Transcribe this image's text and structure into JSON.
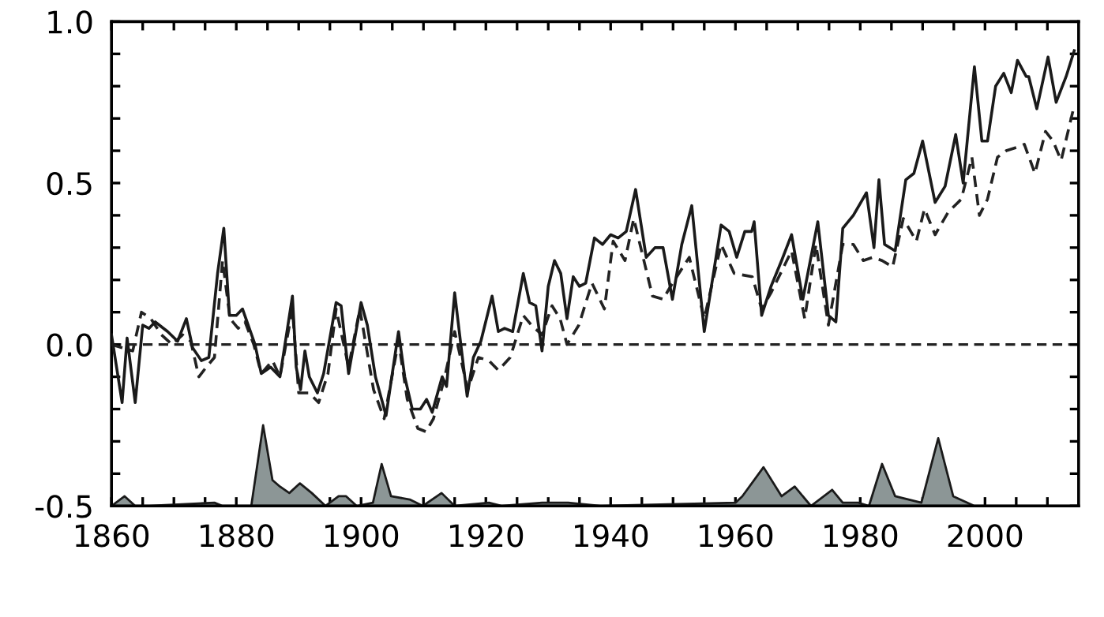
{
  "chart_data": {
    "type": "line",
    "xlim": [
      1860,
      2015
    ],
    "ylim": [
      -0.5,
      1.0
    ],
    "xticks": [
      1860,
      {
        "value": 1865,
        "label": null
      },
      {
        "value": 1870,
        "label": null
      },
      {
        "value": 1875,
        "label": null
      },
      1880,
      {
        "value": 1885,
        "label": null
      },
      {
        "value": 1890,
        "label": null
      },
      {
        "value": 1895,
        "label": null
      },
      1900,
      {
        "value": 1905,
        "label": null
      },
      {
        "value": 1910,
        "label": null
      },
      {
        "value": 1915,
        "label": null
      },
      1920,
      {
        "value": 1925,
        "label": null
      },
      {
        "value": 1930,
        "label": null
      },
      {
        "value": 1935,
        "label": null
      },
      1940,
      {
        "value": 1945,
        "label": null
      },
      {
        "value": 1950,
        "label": null
      },
      {
        "value": 1955,
        "label": null
      },
      1960,
      {
        "value": 1965,
        "label": null
      },
      {
        "value": 1970,
        "label": null
      },
      {
        "value": 1975,
        "label": null
      },
      1980,
      {
        "value": 1985,
        "label": null
      },
      {
        "value": 1990,
        "label": null
      },
      {
        "value": 1995,
        "label": null
      },
      2000,
      {
        "value": 2005,
        "label": null
      },
      {
        "value": 2010,
        "label": null
      }
    ],
    "yticks": [
      {
        "value": -0.5,
        "label": "-0.5"
      },
      {
        "value": -0.4,
        "label": null
      },
      {
        "value": -0.3,
        "label": null
      },
      {
        "value": -0.2,
        "label": null
      },
      {
        "value": -0.1,
        "label": null
      },
      {
        "value": 0.0,
        "label": "0.0"
      },
      {
        "value": 0.1,
        "label": null
      },
      {
        "value": 0.2,
        "label": null
      },
      {
        "value": 0.3,
        "label": null
      },
      {
        "value": 0.4,
        "label": null
      },
      {
        "value": 0.5,
        "label": "0.5"
      },
      {
        "value": 0.6,
        "label": null
      },
      {
        "value": 0.7,
        "label": null
      },
      {
        "value": 0.8,
        "label": null
      },
      {
        "value": 0.9,
        "label": null
      },
      {
        "value": 1.0,
        "label": "1.0"
      }
    ],
    "grid": false,
    "legend": false,
    "ref_lines": [
      {
        "axis": "y",
        "value": 0,
        "color": "#222222",
        "line_style": "dashed"
      }
    ],
    "series": [
      {
        "type": "area",
        "color": "#8c9696",
        "x": [
          1860,
          1862.1,
          1863.8,
          1866,
          1876.5,
          1877.8,
          1882.4,
          1884.3,
          1885.8,
          1887,
          1888.5,
          1890.2,
          1892.1,
          1894.3,
          1896.4,
          1897.6,
          1899.3,
          1901.9,
          1903.3,
          1904.8,
          1907.8,
          1909.9,
          1912.9,
          1915,
          1920.5,
          1922.6,
          1929,
          1933.2,
          1938.3,
          1960,
          1961.1,
          1964.5,
          1967.4,
          1969.5,
          1972.1,
          1975.5,
          1977.2,
          1979.7,
          1981.4,
          1983.5,
          1985.6,
          1989.8,
          1992.5,
          1994.9,
          1998.3,
          2015
        ],
        "values": [
          -0.5,
          -0.47,
          -0.5,
          -0.5,
          -0.49,
          -0.5,
          -0.5,
          -0.25,
          -0.42,
          -0.44,
          -0.46,
          -0.43,
          -0.46,
          -0.5,
          -0.47,
          -0.47,
          -0.5,
          -0.49,
          -0.37,
          -0.47,
          -0.48,
          -0.5,
          -0.46,
          -0.5,
          -0.49,
          -0.5,
          -0.49,
          -0.49,
          -0.5,
          -0.49,
          -0.47,
          -0.38,
          -0.47,
          -0.44,
          -0.5,
          -0.45,
          -0.49,
          -0.49,
          -0.5,
          -0.37,
          -0.47,
          -0.49,
          -0.29,
          -0.47,
          -0.5,
          -0.5
        ]
      },
      {
        "line_style": "dashed",
        "color": "#222222",
        "x": [
          1860,
          1861.7,
          1863.4,
          1864.8,
          1866.3,
          1868,
          1869.7,
          1871.4,
          1872.7,
          1874,
          1875.2,
          1876.5,
          1877.8,
          1879,
          1880.3,
          1881.4,
          1882.8,
          1884,
          1885.8,
          1887,
          1889,
          1890,
          1891.7,
          1893.2,
          1894.7,
          1896,
          1898,
          1899.8,
          1902,
          1903.7,
          1906,
          1907.4,
          1909.1,
          1910.4,
          1911.6,
          1913.3,
          1915,
          1917.1,
          1918.8,
          1920.5,
          1922,
          1923.9,
          1926,
          1927.3,
          1929,
          1930.6,
          1931.9,
          1933,
          1934.9,
          1937,
          1939,
          1940.4,
          1942.3,
          1943.7,
          1946.7,
          1948.4,
          1949.6,
          1952.6,
          1955,
          1957.7,
          1959.8,
          1962.7,
          1964.2,
          1965.7,
          1969,
          1971.1,
          1972.9,
          1974.9,
          1977.2,
          1978.9,
          1980.5,
          1982,
          1983.5,
          1985.2,
          1986.9,
          1989,
          1990.3,
          1992,
          1994.1,
          1996.2,
          1997.9,
          1999.1,
          2000.4,
          2002,
          2003.4,
          2005,
          2006.3,
          2008,
          2009.7,
          2010.9,
          2012.2,
          2014.3
        ],
        "values": [
          0,
          -0.01,
          -0.02,
          0.1,
          0.08,
          0.03,
          0,
          0.03,
          0.01,
          -0.1,
          -0.07,
          -0.04,
          0.26,
          0.08,
          0.05,
          0.07,
          0,
          -0.09,
          -0.05,
          -0.1,
          0.11,
          -0.15,
          -0.15,
          -0.18,
          -0.09,
          0.11,
          -0.07,
          0.11,
          -0.14,
          -0.23,
          0.01,
          -0.17,
          -0.26,
          -0.27,
          -0.23,
          -0.11,
          0.04,
          -0.14,
          -0.04,
          -0.05,
          -0.08,
          -0.04,
          0.09,
          0.06,
          0.03,
          0.12,
          0.08,
          0,
          0.06,
          0.19,
          0.11,
          0.32,
          0.26,
          0.39,
          0.15,
          0.14,
          0.18,
          0.27,
          0.08,
          0.31,
          0.22,
          0.21,
          0.11,
          0.16,
          0.29,
          0.08,
          0.31,
          0.06,
          0.31,
          0.31,
          0.26,
          0.27,
          0.26,
          0.24,
          0.39,
          0.32,
          0.42,
          0.34,
          0.41,
          0.45,
          0.58,
          0.4,
          0.45,
          0.58,
          0.6,
          0.61,
          0.62,
          0.53,
          0.66,
          0.63,
          0.57,
          0.74
        ]
      },
      {
        "line_style": "solid",
        "color": "#1a1a1a",
        "x": [
          1860,
          1861.7,
          1862.5,
          1863.8,
          1865,
          1866,
          1867,
          1869,
          1870.6,
          1872,
          1873,
          1874.4,
          1875.6,
          1877,
          1878,
          1878.9,
          1880,
          1881,
          1883,
          1884,
          1885.5,
          1887,
          1889,
          1889.6,
          1890.3,
          1891,
          1891.7,
          1893,
          1894,
          1896,
          1896.8,
          1898,
          1900,
          1901,
          1902.3,
          1904,
          1906,
          1907,
          1908.2,
          1909.5,
          1910.5,
          1911.4,
          1913,
          1913.7,
          1915,
          1915.8,
          1917,
          1918,
          1919.2,
          1921,
          1922,
          1923,
          1924.3,
          1926,
          1927,
          1928,
          1929,
          1930,
          1931,
          1932,
          1933,
          1934,
          1935,
          1936,
          1937.4,
          1938.7,
          1940,
          1941.2,
          1942.5,
          1944,
          1945.7,
          1947.1,
          1948.4,
          1949.9,
          1951.4,
          1953,
          1955,
          1957.7,
          1959,
          1960.2,
          1961.5,
          1962.6,
          1963,
          1964.2,
          1965.7,
          1967.4,
          1969,
          1970.8,
          1973.2,
          1974.9,
          1976.1,
          1977.2,
          1978.9,
          1981,
          1982.2,
          1983,
          1983.9,
          1985.6,
          1987.3,
          1988.6,
          1990,
          1992,
          1993.6,
          1995.3,
          1996.5,
          1998.3,
          1999.5,
          2000.4,
          2001.7,
          2003,
          2004.2,
          2005.2,
          2006.6,
          2007,
          2008.3,
          2010.1,
          2011.4,
          2013,
          2014.3
        ],
        "values": [
          0.03,
          -0.18,
          0.02,
          -0.18,
          0.06,
          0.05,
          0.07,
          0.04,
          0.01,
          0.08,
          -0.01,
          -0.05,
          -0.04,
          0.22,
          0.36,
          0.09,
          0.09,
          0.11,
          0,
          -0.09,
          -0.07,
          -0.1,
          0.15,
          -0.07,
          -0.14,
          -0.02,
          -0.1,
          -0.15,
          -0.09,
          0.13,
          0.12,
          -0.09,
          0.13,
          0.06,
          -0.1,
          -0.22,
          0.04,
          -0.1,
          -0.2,
          -0.2,
          -0.17,
          -0.21,
          -0.1,
          -0.13,
          0.16,
          0.03,
          -0.16,
          -0.04,
          0.01,
          0.15,
          0.04,
          0.05,
          0.04,
          0.22,
          0.13,
          0.12,
          -0.02,
          0.18,
          0.26,
          0.22,
          0.08,
          0.21,
          0.18,
          0.19,
          0.33,
          0.31,
          0.34,
          0.33,
          0.35,
          0.48,
          0.27,
          0.3,
          0.3,
          0.14,
          0.31,
          0.43,
          0.04,
          0.37,
          0.35,
          0.27,
          0.35,
          0.35,
          0.38,
          0.09,
          0.18,
          0.26,
          0.34,
          0.14,
          0.38,
          0.09,
          0.07,
          0.36,
          0.4,
          0.47,
          0.3,
          0.51,
          0.31,
          0.29,
          0.51,
          0.53,
          0.63,
          0.44,
          0.49,
          0.65,
          0.5,
          0.86,
          0.63,
          0.63,
          0.8,
          0.84,
          0.78,
          0.88,
          0.83,
          0.83,
          0.73,
          0.89,
          0.75,
          0.83,
          0.91
        ]
      }
    ]
  }
}
